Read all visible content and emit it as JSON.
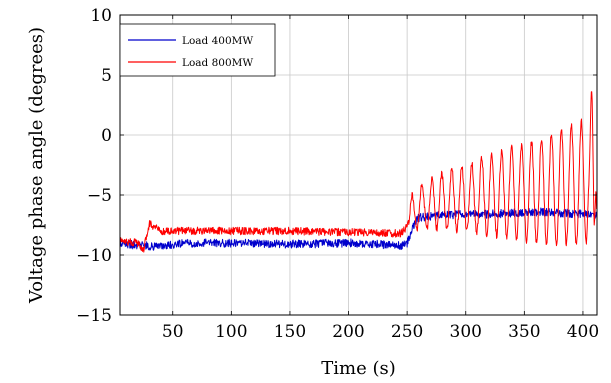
{
  "chart_data": {
    "type": "line",
    "title": "",
    "xlabel": "Time (s)",
    "ylabel": "Voltage phase angle (degrees)",
    "xlim": [
      5,
      412
    ],
    "ylim": [
      -15,
      10
    ],
    "xticks": [
      50,
      100,
      150,
      200,
      250,
      300,
      350,
      400
    ],
    "yticks": [
      -15,
      -10,
      -5,
      0,
      5,
      10
    ],
    "xtick_labels": [
      "50",
      "100",
      "150",
      "200",
      "250",
      "300",
      "350",
      "400"
    ],
    "ytick_labels": [
      "−15",
      "−10",
      "−5",
      "0",
      "5",
      "10"
    ],
    "grid": true,
    "legend_position": "top-left",
    "series": [
      {
        "name": "Load 400MW",
        "color": "#0000cc",
        "description_points": {
          "x": [
            5,
            20,
            40,
            60,
            100,
            150,
            200,
            245,
            250,
            255,
            260,
            280,
            300,
            320,
            340,
            360,
            380,
            400,
            412
          ],
          "y": [
            -9.0,
            -9.2,
            -9.3,
            -9.0,
            -9.0,
            -9.1,
            -9.0,
            -9.2,
            -9.0,
            -7.6,
            -6.9,
            -6.7,
            -6.6,
            -6.6,
            -6.5,
            -6.4,
            -6.5,
            -6.6,
            -6.7
          ]
        }
      },
      {
        "name": "Load 800MW",
        "color": "#ff0000",
        "description_points": {
          "x": [
            5,
            20,
            25,
            30,
            40,
            60,
            100,
            150,
            200,
            245,
            250,
            255,
            260,
            280,
            300,
            320,
            340,
            360,
            380,
            400,
            412
          ],
          "y": [
            -8.8,
            -9.0,
            -9.6,
            -7.4,
            -8.0,
            -8.0,
            -8.0,
            -8.0,
            -8.1,
            -8.2,
            -7.6,
            -6.5,
            -6.0,
            -5.5,
            -5.3,
            -5.0,
            -4.8,
            -4.7,
            -4.4,
            -4.0,
            -3.0
          ]
        },
        "oscillation": {
          "start_x": 252,
          "period_s": 8.5,
          "amplitude_start": 1.6,
          "amplitude_end": 5.5
        }
      }
    ]
  }
}
